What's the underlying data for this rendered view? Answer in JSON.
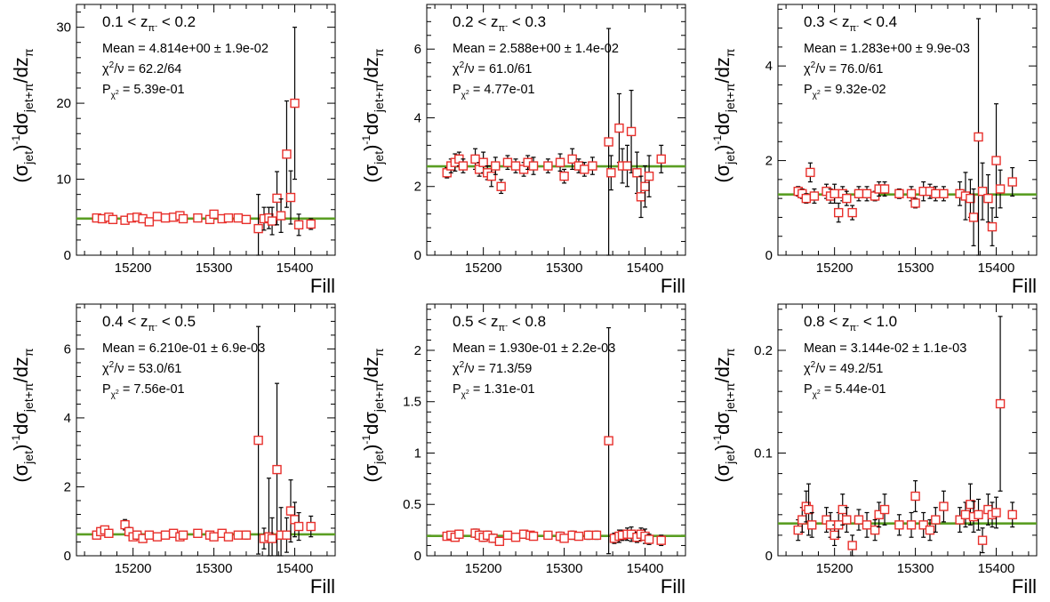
{
  "colors": {
    "fit_line": "#5a9e23",
    "marker": "#e8302c",
    "error_bar": "#000000",
    "axis": "#000000"
  },
  "chart_data": [
    {
      "type": "scatter",
      "zlabel": [
        "0.1",
        "0.2"
      ],
      "stats": {
        "mean": "Mean = 4.814e+00 ± 1.9e-02",
        "chi2_value": "/ν = 62.2/64",
        "prob_value": " = 5.39e-01"
      },
      "xlabel": "Fill",
      "ylabel": "(σjet)⁻¹dσjet+π/dzπ",
      "xlim": [
        15130,
        15450
      ],
      "ylim": [
        0,
        33
      ],
      "x_ticks": [
        15200,
        15300,
        15400
      ],
      "y_ticks": [
        0,
        10,
        20,
        30
      ],
      "fit_value": 4.814,
      "series": [
        {
          "x": [
            15155,
            15162,
            15170,
            15175,
            15190,
            15198,
            15205,
            15212,
            15220,
            15230,
            15240,
            15250,
            15258,
            15262,
            15280,
            15295,
            15300,
            15310,
            15318,
            15330,
            15340,
            15355,
            15362,
            15368,
            15372,
            15378,
            15383,
            15390,
            15395,
            15400,
            15405,
            15420
          ],
          "y": [
            4.9,
            4.8,
            5.0,
            4.7,
            4.6,
            4.9,
            5.0,
            4.8,
            4.4,
            5.1,
            4.9,
            5.0,
            5.2,
            4.8,
            4.9,
            4.7,
            5.4,
            4.8,
            4.9,
            4.9,
            4.7,
            3.5,
            4.8,
            4.9,
            4.5,
            7.5,
            5.2,
            13.3,
            7.6,
            20.0,
            4.0,
            4.1
          ],
          "err": [
            0.3,
            0.3,
            0.3,
            0.3,
            0.4,
            0.4,
            0.3,
            0.4,
            0.5,
            0.4,
            0.3,
            0.3,
            0.4,
            0.4,
            0.3,
            0.3,
            0.5,
            0.3,
            0.4,
            0.4,
            0.4,
            4.5,
            1.5,
            1.4,
            1.8,
            3.5,
            2.2,
            7.0,
            3.5,
            10.0,
            1.4,
            0.7
          ]
        }
      ]
    },
    {
      "type": "scatter",
      "zlabel": [
        "0.2",
        "0.3"
      ],
      "stats": {
        "mean": "Mean = 2.588e+00 ± 1.4e-02",
        "chi2_value": "/ν = 61.0/61",
        "prob_value": " = 4.77e-01"
      },
      "xlabel": "Fill",
      "ylabel": "(σjet)⁻¹dσjet+π/dzπ",
      "xlim": [
        15130,
        15450
      ],
      "ylim": [
        0,
        7.3
      ],
      "x_ticks": [
        15200,
        15300,
        15400
      ],
      "y_ticks": [
        0,
        2,
        4,
        6
      ],
      "fit_value": 2.588,
      "series": [
        {
          "x": [
            15155,
            15160,
            15165,
            15170,
            15175,
            15190,
            15195,
            15200,
            15205,
            15210,
            15215,
            15222,
            15230,
            15240,
            15250,
            15255,
            15262,
            15280,
            15295,
            15300,
            15310,
            15318,
            15325,
            15335,
            15355,
            15358,
            15368,
            15372,
            15378,
            15383,
            15390,
            15395,
            15400,
            15405,
            15420
          ],
          "y": [
            2.4,
            2.6,
            2.7,
            2.8,
            2.6,
            2.8,
            2.5,
            2.7,
            2.4,
            2.3,
            2.6,
            2.0,
            2.7,
            2.6,
            2.5,
            2.7,
            2.6,
            2.6,
            2.7,
            2.3,
            2.8,
            2.6,
            2.5,
            2.6,
            3.3,
            2.4,
            3.7,
            2.6,
            2.6,
            3.6,
            2.4,
            1.7,
            2.0,
            2.3,
            2.8
          ],
          "err": [
            0.15,
            0.2,
            0.25,
            0.2,
            0.2,
            0.3,
            0.2,
            0.3,
            0.2,
            0.3,
            0.25,
            0.2,
            0.2,
            0.2,
            0.2,
            0.2,
            0.25,
            0.2,
            0.25,
            0.2,
            0.3,
            0.2,
            0.2,
            0.25,
            3.3,
            0.5,
            1.0,
            0.5,
            0.6,
            1.2,
            0.6,
            0.6,
            0.6,
            0.6,
            0.4
          ]
        }
      ]
    },
    {
      "type": "scatter",
      "zlabel": [
        "0.3",
        "0.4"
      ],
      "stats": {
        "mean": "Mean = 1.283e+00 ± 9.9e-03",
        "chi2_value": "/ν = 76.0/61",
        "prob_value": " = 9.32e-02"
      },
      "xlabel": "Fill",
      "ylabel": "(σjet)⁻¹dσjet+π/dzπ",
      "xlim": [
        15130,
        15450
      ],
      "ylim": [
        0,
        5.3
      ],
      "x_ticks": [
        15200,
        15300,
        15400
      ],
      "y_ticks": [
        0,
        2,
        4
      ],
      "fit_value": 1.283,
      "series": [
        {
          "x": [
            15155,
            15160,
            15165,
            15170,
            15175,
            15190,
            15195,
            15200,
            15205,
            15210,
            15215,
            15222,
            15230,
            15240,
            15250,
            15255,
            15262,
            15280,
            15295,
            15300,
            15310,
            15318,
            15325,
            15335,
            15355,
            15362,
            15368,
            15372,
            15378,
            15383,
            15390,
            15395,
            15400,
            15405,
            15420
          ],
          "y": [
            1.35,
            1.3,
            1.2,
            1.75,
            1.25,
            1.35,
            1.25,
            1.3,
            0.9,
            1.3,
            1.2,
            0.9,
            1.3,
            1.3,
            1.25,
            1.4,
            1.4,
            1.3,
            1.3,
            1.1,
            1.35,
            1.35,
            1.3,
            1.3,
            1.3,
            1.25,
            1.2,
            0.8,
            2.5,
            1.35,
            1.2,
            0.6,
            2.0,
            1.4,
            1.55
          ],
          "err": [
            0.1,
            0.1,
            0.1,
            0.2,
            0.15,
            0.15,
            0.15,
            0.2,
            0.2,
            0.15,
            0.15,
            0.15,
            0.15,
            0.15,
            0.1,
            0.15,
            0.15,
            0.1,
            0.15,
            0.1,
            0.2,
            0.15,
            0.15,
            0.15,
            0.25,
            0.5,
            0.4,
            0.6,
            2.5,
            0.6,
            0.5,
            0.4,
            1.2,
            0.4,
            0.3
          ]
        }
      ]
    },
    {
      "type": "scatter",
      "zlabel": [
        "0.4",
        "0.5"
      ],
      "stats": {
        "mean": "Mean = 6.210e-01 ± 6.9e-03",
        "chi2_value": "/ν = 53.0/61",
        "prob_value": " = 7.56e-01"
      },
      "xlabel": "Fill",
      "ylabel": "(σjet)⁻¹dσjet+π/dzπ",
      "xlim": [
        15130,
        15450
      ],
      "ylim": [
        0,
        7.3
      ],
      "x_ticks": [
        15200,
        15300,
        15400
      ],
      "y_ticks": [
        0,
        2,
        4,
        6
      ],
      "fit_value": 0.621,
      "series": [
        {
          "x": [
            15155,
            15160,
            15165,
            15170,
            15190,
            15195,
            15200,
            15205,
            15212,
            15220,
            15230,
            15240,
            15250,
            15258,
            15262,
            15280,
            15295,
            15300,
            15310,
            15318,
            15330,
            15340,
            15355,
            15362,
            15368,
            15372,
            15378,
            15383,
            15390,
            15395,
            15400,
            15405,
            15420
          ],
          "y": [
            0.6,
            0.7,
            0.75,
            0.65,
            0.9,
            0.7,
            0.55,
            0.6,
            0.5,
            0.6,
            0.55,
            0.6,
            0.65,
            0.55,
            0.6,
            0.65,
            0.6,
            0.55,
            0.65,
            0.55,
            0.6,
            0.6,
            3.35,
            0.5,
            0.55,
            0.5,
            2.5,
            0.6,
            0.6,
            1.3,
            1.05,
            0.85,
            0.85
          ],
          "err": [
            0.1,
            0.1,
            0.1,
            0.1,
            0.15,
            0.12,
            0.1,
            0.12,
            0.1,
            0.1,
            0.1,
            0.1,
            0.1,
            0.1,
            0.1,
            0.1,
            0.1,
            0.1,
            0.1,
            0.1,
            0.1,
            0.12,
            3.3,
            0.3,
            1.7,
            0.6,
            2.5,
            0.8,
            0.5,
            0.9,
            0.5,
            0.4,
            0.3
          ]
        }
      ]
    },
    {
      "type": "scatter",
      "zlabel": [
        "0.5",
        "0.8"
      ],
      "stats": {
        "mean": "Mean = 1.930e-01 ± 2.2e-03",
        "chi2_value": "/ν = 71.3/59",
        "prob_value": " = 1.31e-01"
      },
      "xlabel": "Fill",
      "ylabel": "(σjet)⁻¹dσjet+π/dzπ",
      "xlim": [
        15130,
        15450
      ],
      "ylim": [
        0,
        2.45
      ],
      "x_ticks": [
        15200,
        15300,
        15400
      ],
      "y_ticks": [
        0,
        0.5,
        1,
        1.5,
        2
      ],
      "y_tick_labels": [
        "0",
        "0.5",
        "1",
        "1.5",
        "2"
      ],
      "fit_value": 0.193,
      "series": [
        {
          "x": [
            15155,
            15160,
            15165,
            15170,
            15190,
            15195,
            15200,
            15205,
            15212,
            15220,
            15230,
            15240,
            15250,
            15258,
            15262,
            15280,
            15295,
            15300,
            15310,
            15318,
            15330,
            15340,
            15355,
            15362,
            15368,
            15372,
            15378,
            15383,
            15390,
            15395,
            15400,
            15405,
            15420
          ],
          "y": [
            0.19,
            0.2,
            0.18,
            0.21,
            0.22,
            0.2,
            0.18,
            0.2,
            0.17,
            0.14,
            0.2,
            0.18,
            0.21,
            0.2,
            0.19,
            0.2,
            0.19,
            0.17,
            0.2,
            0.19,
            0.2,
            0.2,
            1.12,
            0.17,
            0.19,
            0.2,
            0.21,
            0.21,
            0.18,
            0.21,
            0.19,
            0.16,
            0.15
          ],
          "err": [
            0.03,
            0.03,
            0.03,
            0.04,
            0.04,
            0.04,
            0.04,
            0.04,
            0.04,
            0.03,
            0.03,
            0.03,
            0.04,
            0.03,
            0.03,
            0.03,
            0.04,
            0.03,
            0.04,
            0.03,
            0.04,
            0.04,
            1.1,
            0.05,
            0.06,
            0.05,
            0.06,
            0.07,
            0.05,
            0.06,
            0.07,
            0.05,
            0.05
          ]
        }
      ]
    },
    {
      "type": "scatter",
      "zlabel": [
        "0.8",
        "1.0"
      ],
      "stats": {
        "mean": "Mean = 3.144e-02 ± 1.1e-03",
        "chi2_value": "/ν = 49.2/51",
        "prob_value": " = 5.44e-01"
      },
      "xlabel": "Fill",
      "ylabel": "(σjet)⁻¹dσjet+π/dzπ",
      "xlim": [
        15130,
        15450
      ],
      "ylim": [
        0,
        0.245
      ],
      "x_ticks": [
        15200,
        15300,
        15400
      ],
      "y_ticks": [
        0,
        0.1,
        0.2
      ],
      "y_tick_labels": [
        "0",
        "0.1",
        "0.2"
      ],
      "fit_value": 0.03144,
      "series": [
        {
          "x": [
            15155,
            15160,
            15165,
            15168,
            15172,
            15190,
            15195,
            15200,
            15205,
            15210,
            15215,
            15222,
            15230,
            15240,
            15250,
            15255,
            15262,
            15280,
            15295,
            15300,
            15310,
            15318,
            15325,
            15335,
            15355,
            15362,
            15368,
            15372,
            15378,
            15383,
            15390,
            15395,
            15400,
            15405,
            15420
          ],
          "y": [
            0.025,
            0.035,
            0.048,
            0.045,
            0.03,
            0.035,
            0.03,
            0.02,
            0.03,
            0.045,
            0.035,
            0.01,
            0.035,
            0.03,
            0.025,
            0.04,
            0.045,
            0.03,
            0.03,
            0.058,
            0.03,
            0.025,
            0.035,
            0.048,
            0.035,
            0.04,
            0.05,
            0.038,
            0.04,
            0.015,
            0.045,
            0.04,
            0.042,
            0.148,
            0.04
          ],
          "err": [
            0.01,
            0.012,
            0.015,
            0.025,
            0.012,
            0.012,
            0.012,
            0.01,
            0.012,
            0.015,
            0.012,
            0.01,
            0.01,
            0.012,
            0.01,
            0.012,
            0.015,
            0.01,
            0.012,
            0.015,
            0.012,
            0.01,
            0.012,
            0.015,
            0.012,
            0.012,
            0.02,
            0.015,
            0.015,
            0.012,
            0.015,
            0.012,
            0.015,
            0.085,
            0.012
          ]
        }
      ]
    }
  ]
}
